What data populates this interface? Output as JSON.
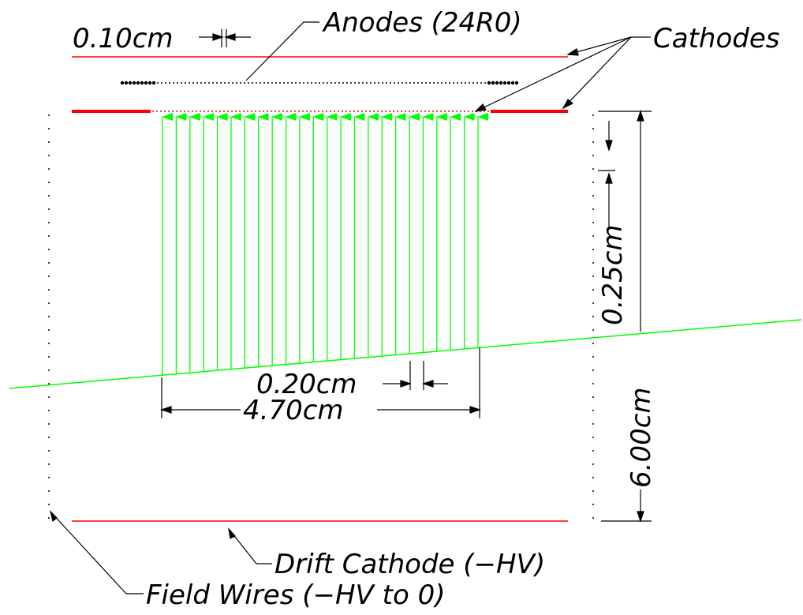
{
  "labels": {
    "anodes": "Anodes (24R0)",
    "cathodes": "Cathodes",
    "anode_gap": "0.10cm",
    "cathode_gap": "0.25cm",
    "drift_gap": "6.00cm",
    "pitch": "0.20cm",
    "width": "4.70cm",
    "drift_cathode": "Drift Cathode (−HV)",
    "field_wires": "Field Wires (−HV to 0)"
  },
  "colors": {
    "cathode": "#ff0000",
    "field_lines": "#00ff00",
    "wires": "#000000"
  },
  "anode_count": 24
}
